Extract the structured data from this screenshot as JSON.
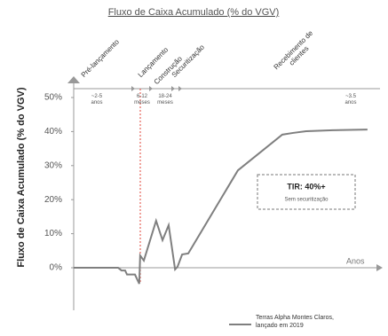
{
  "chart_data": {
    "type": "line",
    "title": "Fluxo de Caixa Acumulado (% do VGV)",
    "y_label": "Fluxo de Caixa Acumulado (% do VGV)",
    "x_label": "Anos",
    "phases": [
      "Pré-lançamento",
      "Lançamento",
      "Construção",
      "Securitização",
      "Recebimento de clientes"
    ],
    "durations": [
      "~2-5 anos",
      "6-12 meses",
      "18-24 meses",
      "~3.5 anos"
    ],
    "annotation": {
      "title": "TIR: 40%+",
      "subtitle": "Sem securitização"
    },
    "xlim": [
      0,
      100
    ],
    "ylim": [
      -10,
      50
    ],
    "yticks": [
      {
        "value": 0,
        "label": "0%"
      },
      {
        "value": 10,
        "label": "10%"
      },
      {
        "value": 20,
        "label": "20%"
      },
      {
        "value": 30,
        "label": "30%"
      },
      {
        "value": 40,
        "label": "40%"
      },
      {
        "value": 50,
        "label": "50%"
      }
    ],
    "series": [
      {
        "name": "Terras Alpha Montes Claros, lançado em 2019",
        "color": "#7f7f7f",
        "x": [
          0,
          14.5,
          15.6,
          16.8,
          17.4,
          20,
          21.4,
          21.7,
          22.9,
          26.9,
          29,
          31,
          33.1,
          33.9,
          35.4,
          37.4,
          53.6,
          68.1,
          71.6,
          75.9,
          84.6,
          95.9
        ],
        "values": [
          0,
          0,
          -0.8,
          -0.8,
          -2,
          -2,
          -4.7,
          3.6,
          2.1,
          13.8,
          8.1,
          12.5,
          -0.5,
          0.3,
          3.9,
          4.2,
          28.6,
          39.1,
          39.6,
          40.1,
          40.4,
          40.6
        ]
      }
    ]
  }
}
